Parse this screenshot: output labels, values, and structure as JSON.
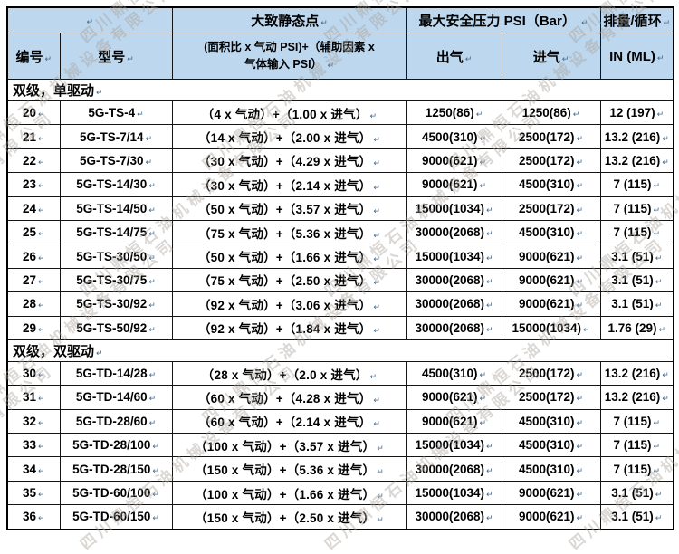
{
  "marks": {
    "return": "↵"
  },
  "watermark": {
    "text": "四川鼎恒石油机械设备有限公司",
    "color": "#a8a29a"
  },
  "table": {
    "header": {
      "row1": {
        "static_point": "大致静态点",
        "max_pressure": "最大安全压力 PSI（Bar）",
        "displacement": "排量/循环"
      },
      "row2": {
        "no": "编号",
        "model": "型号",
        "formula": "(面积比 x 气动 PSI)+（辅助因素 x\n气体输入  PSI）",
        "air_out": "出气",
        "air_in": "进气",
        "per_cycle": "IN (ML)"
      }
    },
    "sections": [
      {
        "title": "双级，单驱动",
        "rows": [
          [
            "20",
            "5G-TS-4",
            "（4 x  气动）+（1.00 x  进气）",
            "1250(86)",
            "1250(86)",
            "12 (197)"
          ],
          [
            "21",
            "5G-TS-7/14",
            "（14 x  气动）+（2.00 x  进气）",
            "4500(310)",
            "2500(172)",
            "13.2 (216)"
          ],
          [
            "22",
            "5G-TS-7/30",
            "（30 x  气动）+（4.29 x  进气）",
            "9000(621)",
            "2500(172)",
            "13.2 (216)"
          ],
          [
            "23",
            "5G-TS-14/30",
            "（30 x  气动）+（2.14 x  进气）",
            "9000(621)",
            "4500(310)",
            "7 (115)"
          ],
          [
            "24",
            "5G-TS-14/50",
            "（50 x  气动）+（3.57 x  进气）",
            "15000(1034)",
            "2500(172)",
            "7 (115)"
          ],
          [
            "25",
            "5G-TS-14/75",
            "（75 x  气动）+（5.36 x  进气）",
            "30000(2068)",
            "4500(310)",
            "7 (115)"
          ],
          [
            "26",
            "5G-TS-30/50",
            "（50 x  气动）+（1.66 x  进气）",
            "15000(1034)",
            "9000(621)",
            "3.1 (51)"
          ],
          [
            "27",
            "5G-TS-30/75",
            "（75 x  气动）+（2.50 x  进气）",
            "30000(2068)",
            "9000(621)",
            "3.1 (51)"
          ],
          [
            "28",
            "5G-TS-30/92",
            "（92 x  气动）+（3.06 x  进气）",
            "30000(2068)",
            "9000(621)",
            "3.1 (51)"
          ],
          [
            "29",
            "5G-TS-50/92",
            "（92 x  气动）+（1.84 x  进气）",
            "30000(2068)",
            "15000(1034)",
            "1.76 (29)"
          ]
        ]
      },
      {
        "title": "双级，双驱动",
        "rows": [
          [
            "30",
            "5G-TD-14/28",
            "（28 x  气动）+（2.0 x  进气）",
            "4500(310)",
            "2500(172)",
            "13.2 (216)"
          ],
          [
            "31",
            "5G-TD-14/60",
            "（60 x  气动）+（4.28 x  进气）",
            "9000(621)",
            "2500(172)",
            "13.2 (216)"
          ],
          [
            "32",
            "5G-TD-28/60",
            "（60 x  气动）+（2.14 x  进气）",
            "9000(621)",
            "4500(310)",
            "7 (115)"
          ],
          [
            "33",
            "5G-TD-28/100",
            "（100 x  气动）+（3.57 x  进气）",
            "15000(1034)",
            "4500(310)",
            "7 (115)"
          ],
          [
            "34",
            "5G-TD-28/150",
            "（150 x  气动）+（5.36 x  进气）",
            "30000(2068)",
            "4500(310)",
            "7 (115)"
          ],
          [
            "35",
            "5G-TD-60/100",
            "（100 x  气动）+（1.66 x  进气）",
            "15000(1034)",
            "9000(621)",
            "3.1 (51)"
          ],
          [
            "36",
            "5G-TD-60/150",
            "（150 x  气动）+（2.50 x  进气）",
            "30000(2068)",
            "9000(621)",
            "3.1 (51)"
          ]
        ]
      }
    ]
  }
}
